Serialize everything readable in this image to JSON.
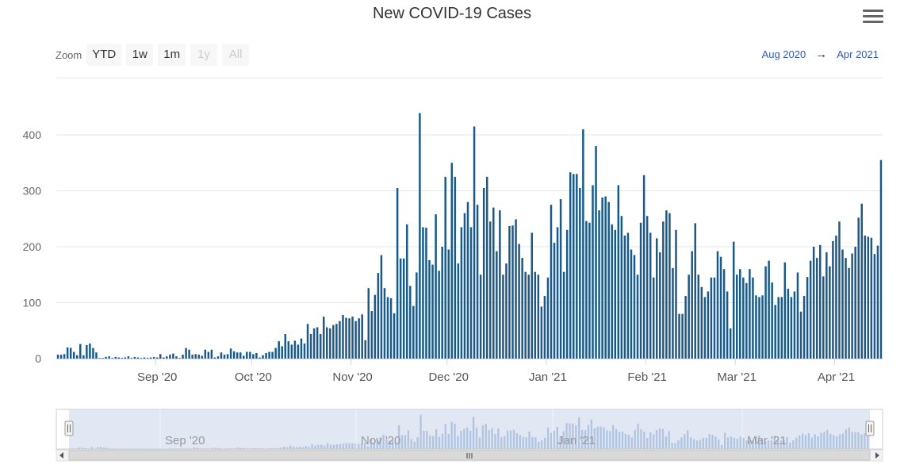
{
  "title": "New COVID-19 Cases",
  "menu_icon": "hamburger-menu-icon",
  "zoom": {
    "label": "Zoom",
    "buttons": [
      {
        "label": "YTD",
        "enabled": true
      },
      {
        "label": "1w",
        "enabled": true
      },
      {
        "label": "1m",
        "enabled": true
      },
      {
        "label": "1y",
        "enabled": false
      },
      {
        "label": "All",
        "enabled": false
      }
    ]
  },
  "range": {
    "from": "Aug 2020",
    "arrow": "→",
    "to": "Apr 2021"
  },
  "colors": {
    "bar": "#1a5a8a",
    "navigator_fill": "#c9d6ea",
    "navigator_bar": "#94b0d8",
    "grid": "#e6e6e6"
  },
  "navigator": {
    "labels": [
      "Sep '20",
      "Nov '20",
      "Jan '21",
      "Mar '21"
    ]
  },
  "chart_data": {
    "type": "bar",
    "x_start": "2020-08-01",
    "x_ticks": [
      "Sep '20",
      "Oct '20",
      "Nov '20",
      "Dec '20",
      "Jan '21",
      "Feb '21",
      "Mar '21",
      "Apr '21"
    ],
    "y_ticks": [
      "0",
      "100",
      "200",
      "300",
      "400"
    ],
    "ylim": [
      0,
      450
    ],
    "values": [
      7,
      7,
      8,
      20,
      19,
      12,
      6,
      26,
      6,
      24,
      27,
      19,
      11,
      0,
      0,
      3,
      4,
      0,
      3,
      2,
      0,
      2,
      4,
      0,
      3,
      2,
      1,
      2,
      0,
      2,
      3,
      2,
      8,
      2,
      4,
      7,
      9,
      4,
      1,
      7,
      19,
      16,
      7,
      8,
      7,
      5,
      16,
      12,
      16,
      2,
      4,
      11,
      7,
      8,
      18,
      13,
      11,
      11,
      5,
      12,
      12,
      8,
      10,
      2,
      6,
      10,
      12,
      12,
      19,
      31,
      22,
      44,
      31,
      25,
      32,
      25,
      36,
      27,
      62,
      44,
      54,
      56,
      44,
      75,
      56,
      54,
      60,
      62,
      67,
      78,
      73,
      72,
      75,
      67,
      72,
      79,
      33,
      126,
      85,
      114,
      153,
      185,
      126,
      110,
      108,
      81,
      305,
      179,
      179,
      240,
      130,
      94,
      154,
      439,
      235,
      234,
      176,
      168,
      258,
      157,
      200,
      325,
      195,
      350,
      325,
      170,
      235,
      260,
      280,
      235,
      415,
      275,
      150,
      305,
      325,
      245,
      270,
      192,
      265,
      150,
      170,
      237,
      238,
      249,
      205,
      180,
      155,
      150,
      225,
      155,
      150,
      93,
      112,
      145,
      275,
      207,
      235,
      285,
      155,
      230,
      333,
      330,
      330,
      305,
      410,
      246,
      243,
      310,
      380,
      265,
      288,
      290,
      280,
      240,
      230,
      310,
      255,
      220,
      225,
      195,
      185,
      150,
      243,
      328,
      255,
      225,
      145,
      215,
      190,
      245,
      265,
      260,
      162,
      230,
      80,
      80,
      112,
      150,
      192,
      242,
      150,
      128,
      110,
      120,
      145,
      145,
      192,
      182,
      160,
      120,
      54,
      209,
      150,
      160,
      145,
      135,
      160,
      145,
      113,
      110,
      113,
      165,
      175,
      136,
      96,
      110,
      110,
      172,
      125,
      110,
      120,
      154,
      84,
      112,
      146,
      175,
      200,
      180,
      203,
      147,
      190,
      165,
      210,
      220,
      245,
      195,
      180,
      162,
      188,
      200,
      252,
      277,
      220,
      218,
      216,
      187,
      202,
      355
    ]
  }
}
